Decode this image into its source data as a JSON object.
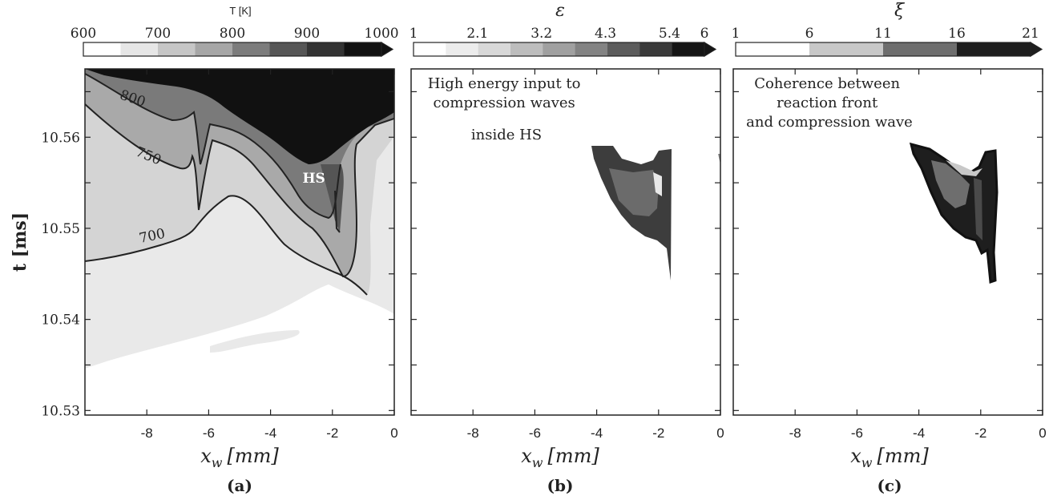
{
  "chart_data": [
    {
      "type": "heatmap",
      "panel_label": "(a)",
      "colorbar": {
        "title": "T [K]",
        "ticks": [
          "600",
          "700",
          "800",
          "900",
          "1000"
        ],
        "levels": 8,
        "colors": [
          "#ffffff",
          "#e6e6e6",
          "#c6c6c6",
          "#a6a6a6",
          "#7c7c7c",
          "#565656",
          "#333333",
          "#111111"
        ]
      },
      "xlabel": "x_w [mm]",
      "ylabel": "t [ms]",
      "x_ticks": [
        "-8",
        "-6",
        "-4",
        "-2",
        "0"
      ],
      "y_ticks": [
        "10.53",
        "10.54",
        "10.55",
        "10.56"
      ],
      "xlim": [
        -10,
        0
      ],
      "ylim": [
        10.5295,
        10.5675
      ],
      "contour_labels": [
        {
          "text": "800",
          "x": -8.5,
          "y": 10.5638
        },
        {
          "text": "750",
          "x": -8.0,
          "y": 10.5575
        },
        {
          "text": "700",
          "x": -7.8,
          "y": 10.5487
        }
      ],
      "annotations": [
        {
          "text": "HS",
          "x": -2.6,
          "y": 10.555
        }
      ]
    },
    {
      "type": "heatmap",
      "panel_label": "(b)",
      "colorbar": {
        "title": "ε",
        "ticks": [
          "1",
          "2.1",
          "3.2",
          "4.3",
          "5.4",
          "6"
        ],
        "levels": 9,
        "colors": [
          "#ffffff",
          "#ececec",
          "#d8d8d8",
          "#bdbdbd",
          "#a0a0a0",
          "#838383",
          "#5c5c5c",
          "#3a3a3a",
          "#151515"
        ]
      },
      "xlabel": "x_w [mm]",
      "x_ticks": [
        "-8",
        "-6",
        "-4",
        "-2",
        "0"
      ],
      "xlim": [
        -10,
        0
      ],
      "ylim": [
        10.5295,
        10.5675
      ],
      "annotations": [
        {
          "text": [
            "High energy input to",
            "compression waves",
            "inside HS"
          ]
        }
      ]
    },
    {
      "type": "heatmap",
      "panel_label": "(c)",
      "colorbar": {
        "title": "ξ",
        "ticks": [
          "1",
          "6",
          "11",
          "16",
          "21"
        ],
        "levels": 4,
        "colors": [
          "#ffffff",
          "#c8c8c8",
          "#6e6e6e",
          "#1e1e1e"
        ]
      },
      "xlabel": "x_w [mm]",
      "x_ticks": [
        "-8",
        "-6",
        "-4",
        "-2",
        "0"
      ],
      "xlim": [
        -10,
        0
      ],
      "ylim": [
        10.5295,
        10.5675
      ],
      "annotations": [
        {
          "text": [
            "Coherence between",
            "reaction front",
            "and compression wave"
          ]
        }
      ]
    }
  ]
}
